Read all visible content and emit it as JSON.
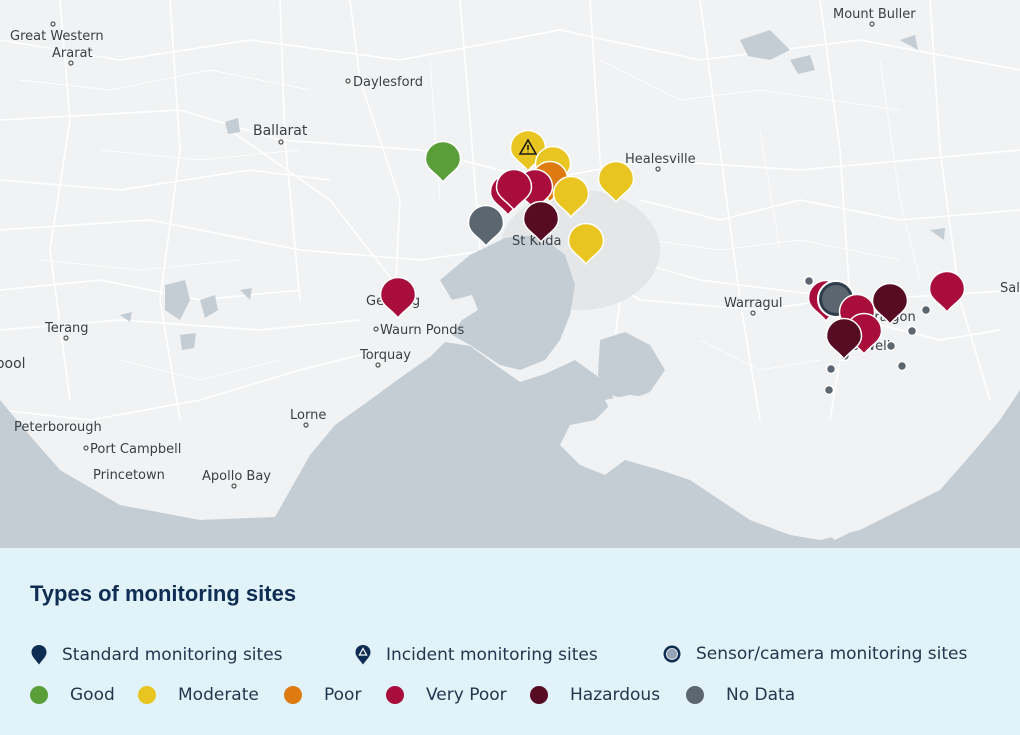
{
  "map": {
    "place_labels": [
      "Great Western",
      "Ararat",
      "Daylesford",
      "Ballarat",
      "Mount Buller",
      "Healesville",
      "St Kilda",
      "Geelong",
      "Waurn Ponds",
      "Torquay",
      "Terang",
      "Warragul",
      "Sale",
      "Lorne",
      "Peterborough",
      "Port Campbell",
      "Princetown",
      "Apollo Bay",
      "Warrnambool",
      "Traralgon",
      "Morwell"
    ],
    "markers": [
      {
        "status": "Good",
        "type": "standard"
      },
      {
        "status": "Moderate",
        "type": "incident"
      },
      {
        "status": "Moderate",
        "type": "standard"
      },
      {
        "status": "Poor",
        "type": "standard"
      },
      {
        "status": "Moderate",
        "type": "standard"
      },
      {
        "status": "Moderate",
        "type": "standard"
      },
      {
        "status": "Moderate",
        "type": "standard"
      },
      {
        "status": "Very Poor",
        "type": "standard"
      },
      {
        "status": "Very Poor",
        "type": "standard"
      },
      {
        "status": "Very Poor",
        "type": "standard"
      },
      {
        "status": "Hazardous",
        "type": "standard"
      },
      {
        "status": "No Data",
        "type": "standard"
      },
      {
        "status": "Very Poor",
        "type": "standard"
      },
      {
        "status": "Very Poor",
        "type": "standard"
      },
      {
        "status": "No Data",
        "type": "sensor"
      },
      {
        "status": "Very Poor",
        "type": "standard"
      },
      {
        "status": "Very Poor",
        "type": "standard"
      },
      {
        "status": "Hazardous",
        "type": "standard"
      },
      {
        "status": "Hazardous",
        "type": "standard"
      },
      {
        "status": "Very Poor",
        "type": "standard"
      }
    ]
  },
  "legend": {
    "title": "Types of monitoring sites",
    "site_types": [
      {
        "label": "Standard monitoring sites",
        "icon": "pin-icon"
      },
      {
        "label": "Incident monitoring sites",
        "icon": "incident-pin-icon"
      },
      {
        "label": "Sensor/camera monitoring sites",
        "icon": "sensor-circle-icon"
      }
    ],
    "statuses": [
      {
        "label": "Good",
        "color": "#5a9e3a"
      },
      {
        "label": "Moderate",
        "color": "#e8c521"
      },
      {
        "label": "Poor",
        "color": "#de7b10"
      },
      {
        "label": "Very Poor",
        "color": "#a80d3c"
      },
      {
        "label": "Hazardous",
        "color": "#560c22"
      },
      {
        "label": "No Data",
        "color": "#5b6670"
      }
    ]
  },
  "colors": {
    "water": "#c4cdd3",
    "land": "#f1f2f3",
    "legend_bg": "#e1f3f9",
    "title": "#0f2d52",
    "pin_dark": "#0f2d52"
  }
}
